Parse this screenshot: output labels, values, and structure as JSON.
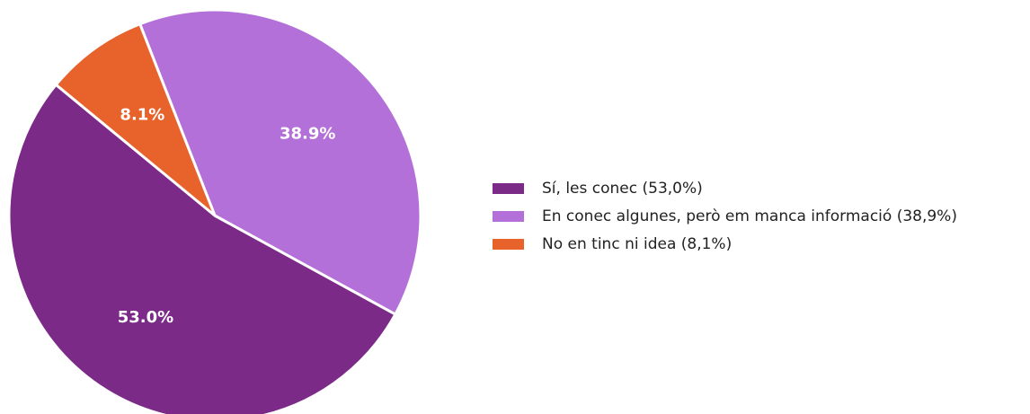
{
  "chart_data": {
    "type": "pie",
    "categories": [
      "Sí, les conec (53,0%)",
      "En conec algunes, però em manca informació (38,9%)",
      "No en tinc ni idea (8,1%)"
    ],
    "values": [
      53.0,
      38.9,
      8.1
    ],
    "value_labels": [
      "53.0%",
      "38.9%",
      "8.1%"
    ],
    "colors": [
      "#7b2a87",
      "#b370d8",
      "#e8622b"
    ],
    "legend": "right"
  }
}
